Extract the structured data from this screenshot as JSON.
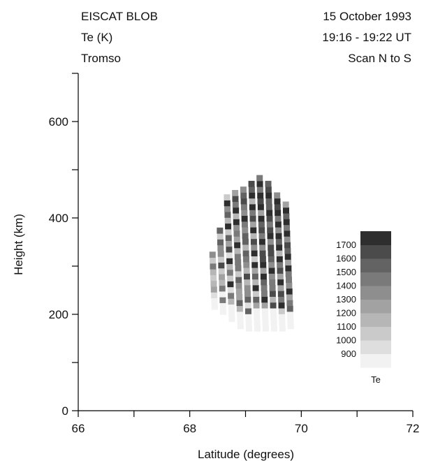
{
  "header": {
    "left": [
      "EISCAT BLOB",
      "Te (K)",
      "Tromso"
    ],
    "right": [
      "15 October 1993",
      "19:16 - 19:22 UT",
      "Scan N to S"
    ]
  },
  "chart_data": {
    "type": "heatmap",
    "xlabel": "Latitude (degrees)",
    "ylabel": "Height (km)",
    "xlim": [
      66,
      72
    ],
    "ylim": [
      0,
      700
    ],
    "xticks": [
      66,
      68,
      70,
      72
    ],
    "yticks": [
      0,
      200,
      400,
      600
    ],
    "grid": false,
    "colorbar": {
      "label": "Te",
      "levels": [
        900,
        1000,
        1100,
        1200,
        1300,
        1400,
        1500,
        1600,
        1700
      ],
      "range": [
        800,
        1800
      ],
      "colors": [
        "#f2f2f2",
        "#dedede",
        "#cacaca",
        "#b6b6b6",
        "#a2a2a2",
        "#8e8e8e",
        "#7a7a7a",
        "#636363",
        "#4b4b4b",
        "#2e2e2e"
      ]
    },
    "beams": [
      {
        "lat": 68.45,
        "h_min": 210,
        "h_max": 330,
        "mean_te": 1100
      },
      {
        "lat": 68.6,
        "h_min": 200,
        "h_max": 380,
        "mean_te": 1200
      },
      {
        "lat": 68.75,
        "h_min": 185,
        "h_max": 440,
        "mean_te": 1300
      },
      {
        "lat": 68.9,
        "h_min": 170,
        "h_max": 450,
        "mean_te": 1350
      },
      {
        "lat": 69.05,
        "h_min": 165,
        "h_max": 460,
        "mean_te": 1350
      },
      {
        "lat": 69.2,
        "h_min": 165,
        "h_max": 470,
        "mean_te": 1400
      },
      {
        "lat": 69.35,
        "h_min": 165,
        "h_max": 480,
        "mean_te": 1550
      },
      {
        "lat": 69.5,
        "h_min": 165,
        "h_max": 470,
        "mean_te": 1500
      },
      {
        "lat": 69.65,
        "h_min": 165,
        "h_max": 450,
        "mean_te": 1550
      },
      {
        "lat": 69.8,
        "h_min": 170,
        "h_max": 430,
        "mean_te": 1500
      }
    ]
  }
}
